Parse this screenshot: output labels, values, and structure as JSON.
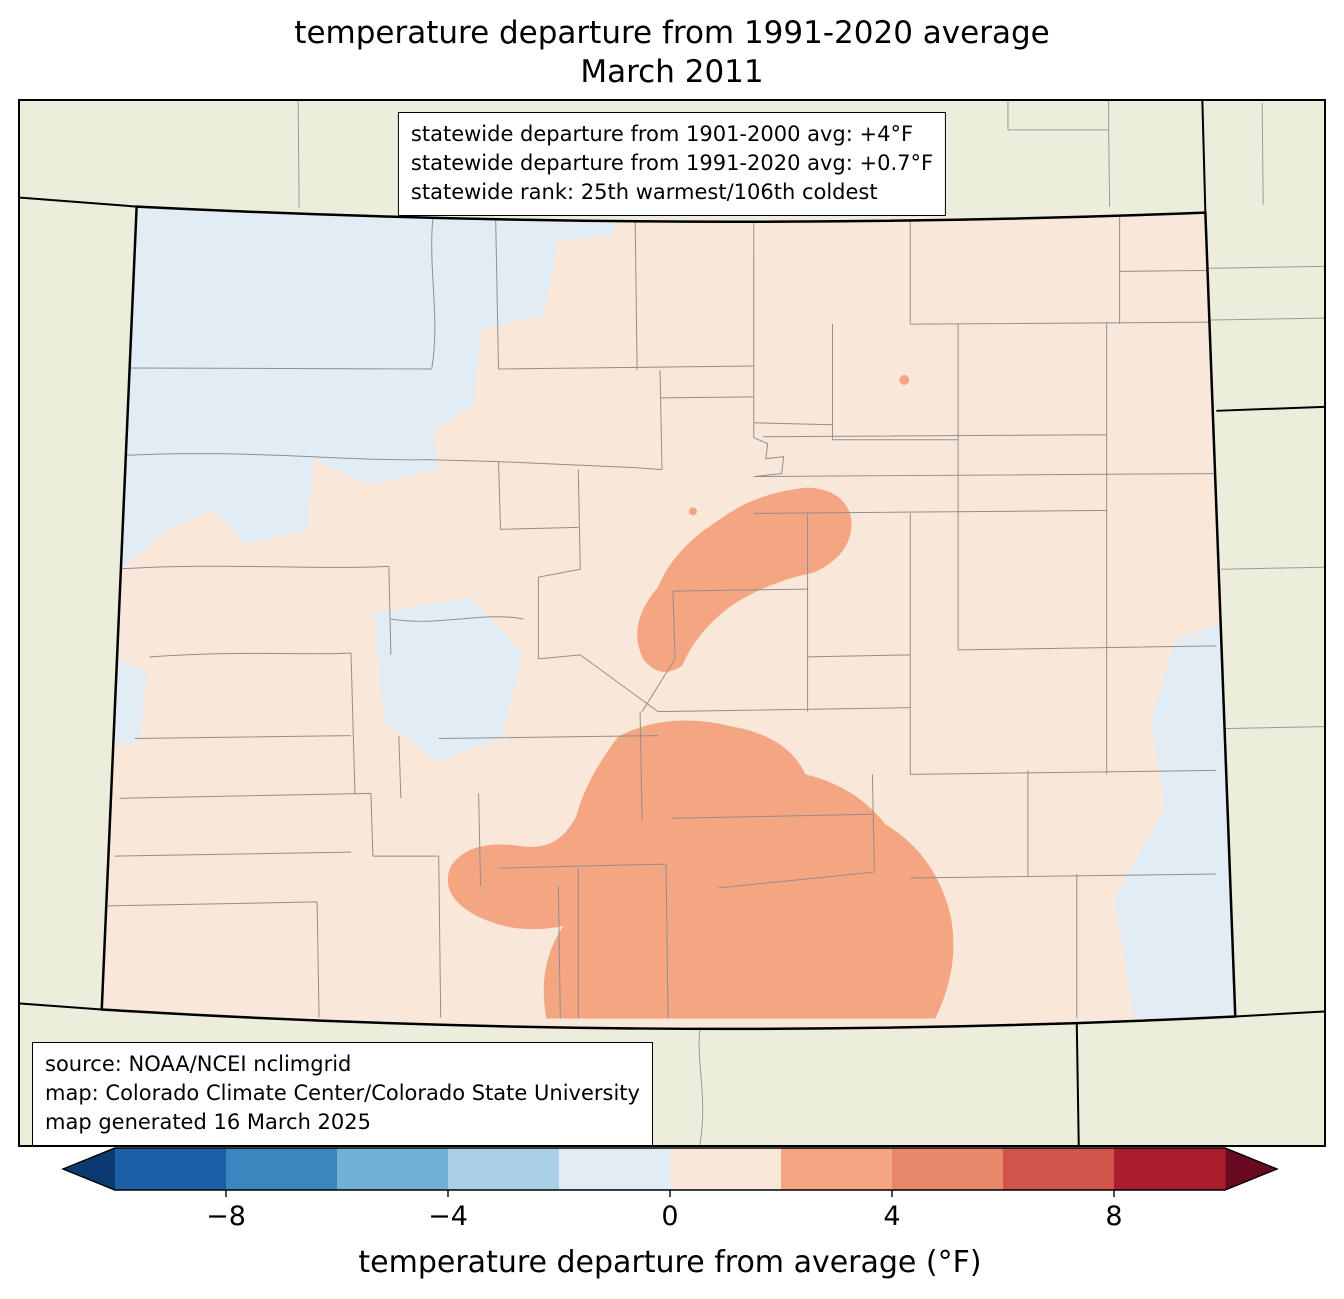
{
  "title": {
    "line1": "temperature departure from 1991-2020 average",
    "line2": "March 2011"
  },
  "stats_box": {
    "lines": [
      "statewide departure from 1901-2000 avg: +4°F",
      "statewide departure from 1991-2020 avg: +0.7°F",
      "statewide rank: 25th warmest/106th coldest"
    ]
  },
  "source_box": {
    "lines": [
      "source: NOAA/NCEI nclimgrid",
      "map: Colorado Climate Center/Colorado State University",
      "map generated 16 March 2025"
    ]
  },
  "colorbar": {
    "label": "temperature departure from average (°F)",
    "range": [
      -10,
      10
    ],
    "bin_width": 2,
    "ticks": [
      {
        "label": "−8",
        "value": -8
      },
      {
        "label": "−4",
        "value": -4
      },
      {
        "label": "0",
        "value": 0
      },
      {
        "label": "4",
        "value": 4
      },
      {
        "label": "8",
        "value": 8
      }
    ],
    "bin_colors": [
      "#1c5fa6",
      "#3b86bf",
      "#70b0d4",
      "#a9cfe5",
      "#e2ecf4",
      "#f9e7da",
      "#f4a582",
      "#e8876a",
      "#d0544b",
      "#ad1c2d"
    ],
    "under_color": "#0a3a70",
    "over_color": "#690a20"
  },
  "map": {
    "colors": {
      "background": "#eceedb",
      "state_base": "#f9e7da",
      "cool_patch": "#e2ecf4",
      "warm_patch": "#f4a582",
      "county_line": "#8f8f8f",
      "neighbor_line": "#9a9a9a",
      "state_border": "#000000"
    },
    "regions": {
      "northwest_and_west": "−2 to 0 °F",
      "most_of_state": "0 to +2 °F",
      "south_central": "+2 to +4 °F"
    }
  }
}
